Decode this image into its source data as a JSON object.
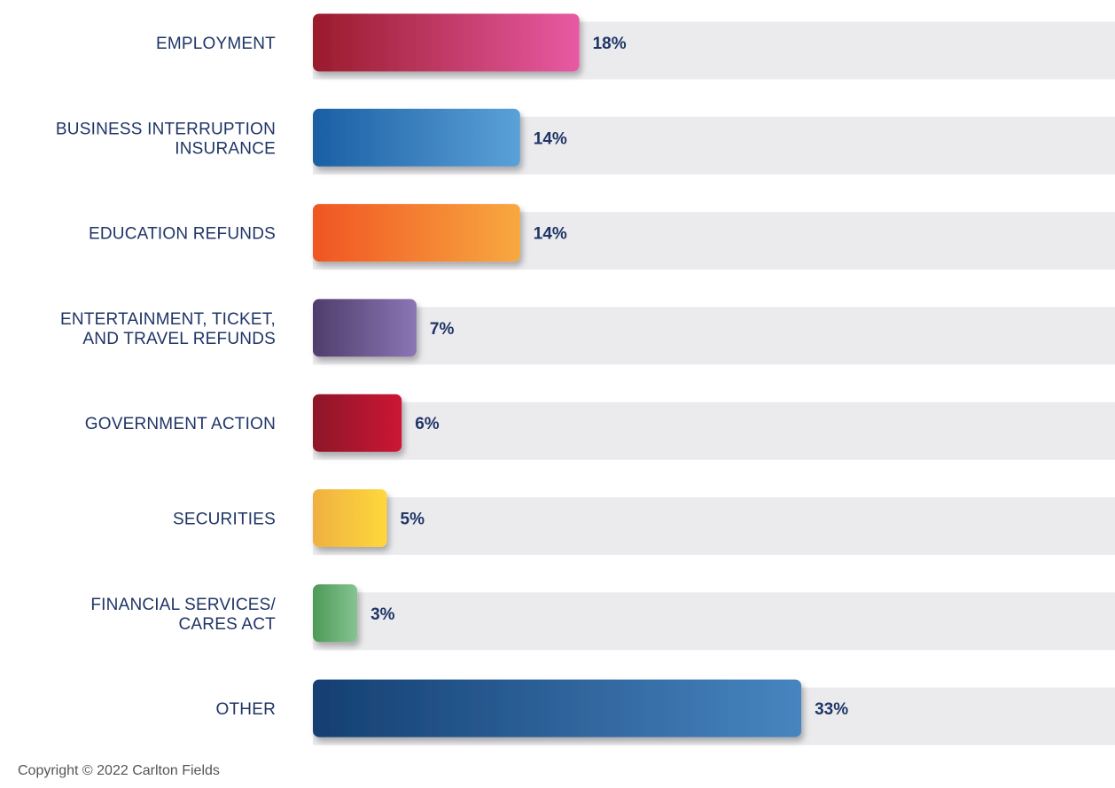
{
  "chart_data": {
    "type": "bar",
    "orientation": "horizontal",
    "categories": [
      [
        "EMPLOYMENT"
      ],
      [
        "BUSINESS INTERRUPTION",
        "INSURANCE"
      ],
      [
        "EDUCATION REFUNDS"
      ],
      [
        "ENTERTAINMENT, TICKET,",
        "AND TRAVEL REFUNDS"
      ],
      [
        "GOVERNMENT ACTION"
      ],
      [
        "SECURITIES"
      ],
      [
        "FINANCIAL SERVICES/",
        "CARES ACT"
      ],
      [
        "OTHER"
      ]
    ],
    "values": [
      18,
      14,
      14,
      7,
      6,
      5,
      3,
      33
    ],
    "value_labels": [
      "18%",
      "14%",
      "14%",
      "7%",
      "6%",
      "5%",
      "3%",
      "33%"
    ],
    "xlim": [
      0,
      50
    ],
    "unit": "%",
    "grid": false,
    "colors": [
      [
        "#9a1b2b",
        "#e85aa3"
      ],
      [
        "#1a5fa3",
        "#5ba1d8"
      ],
      [
        "#f05523",
        "#f8a840"
      ],
      [
        "#4f3d6c",
        "#8a76b4"
      ],
      [
        "#8d1428",
        "#cc1535"
      ],
      [
        "#efb042",
        "#ffd83b"
      ],
      [
        "#4d9a56",
        "#86c392"
      ],
      [
        "#143f72",
        "#4785c0"
      ]
    ],
    "track_color": "#ebebee"
  },
  "footer": {
    "copyright": "Copyright © 2022 Carlton Fields"
  }
}
